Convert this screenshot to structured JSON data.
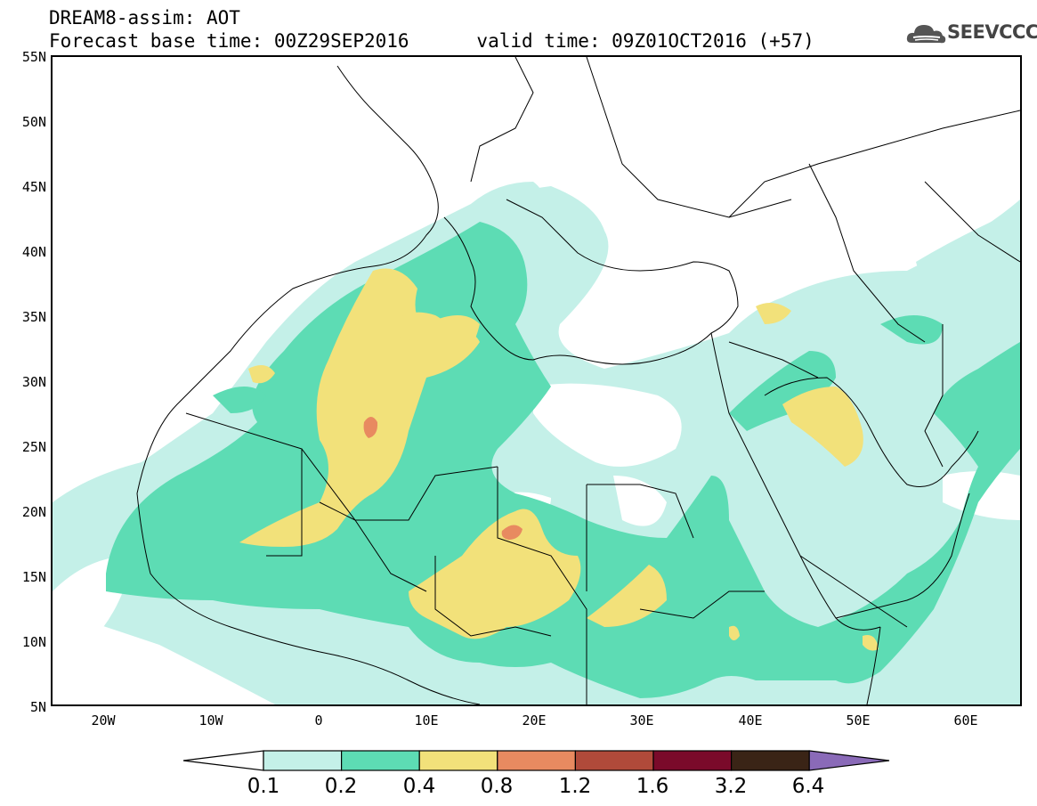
{
  "header": {
    "title_line1": "DREAM8-assim: AOT",
    "title_line2": "Forecast base time: 00Z29SEP2016      valid time: 09Z01OCT2016 (+57)",
    "logo_text": "SEEVCCC"
  },
  "map": {
    "lat_labels": [
      "55N",
      "50N",
      "45N",
      "40N",
      "35N",
      "30N",
      "25N",
      "20N",
      "15N",
      "10N",
      "5N"
    ],
    "lon_labels": [
      "20W",
      "10W",
      "0",
      "10E",
      "20E",
      "30E",
      "40E",
      "50E",
      "60E"
    ],
    "extent": {
      "lon_min": -25,
      "lon_max": 65,
      "lat_min": 5,
      "lat_max": 55
    }
  },
  "legend": {
    "levels": [
      "0.1",
      "0.2",
      "0.4",
      "0.8",
      "1.2",
      "1.6",
      "3.2",
      "6.4"
    ],
    "colors": [
      "#ffffff",
      "#c4f0e8",
      "#5ddcb4",
      "#f2e17a",
      "#e88a60",
      "#b04a3a",
      "#7a0a2a",
      "#3a2416",
      "#8a6ab8"
    ]
  }
}
